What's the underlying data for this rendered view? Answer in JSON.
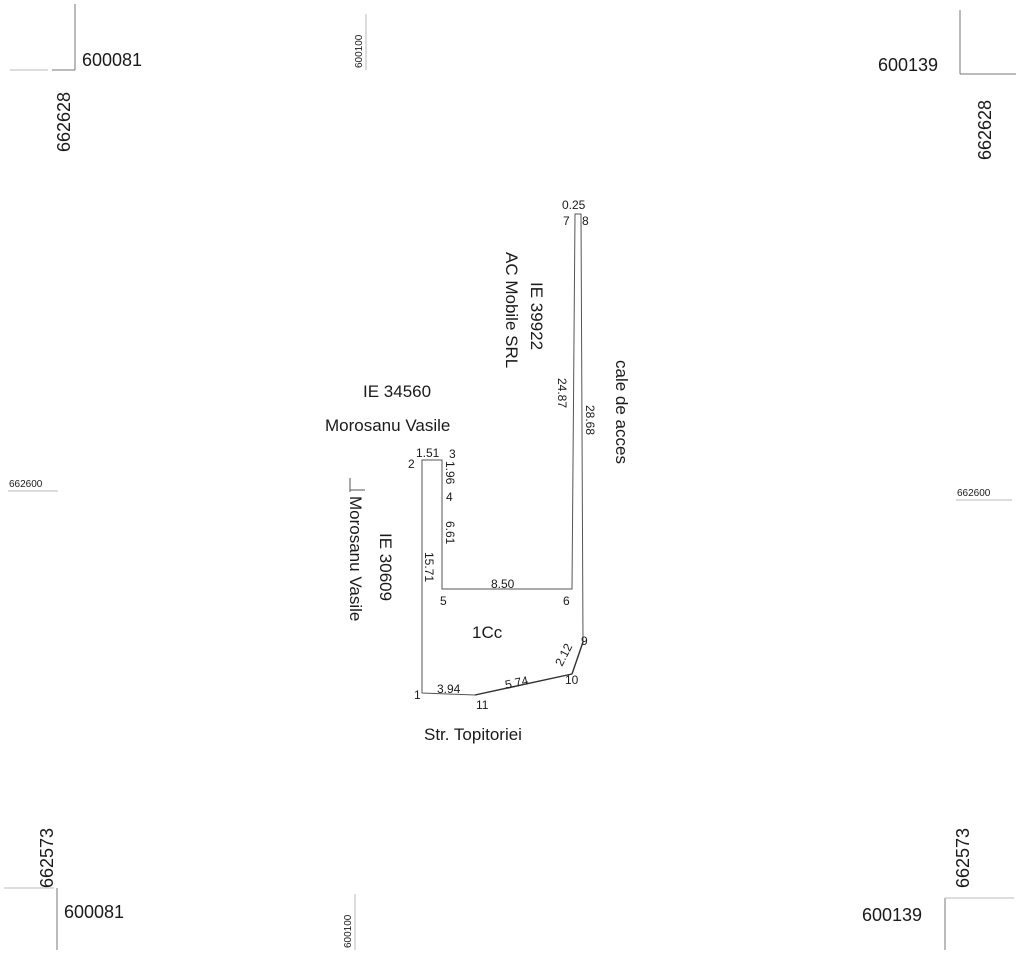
{
  "grid": {
    "x_left": "600081",
    "x_right": "600139",
    "x_mid": "600100",
    "y_top": "662628",
    "y_mid": "662600",
    "y_bottom": "662573"
  },
  "parcel": {
    "label": "1Cc",
    "points": [
      "1",
      "2",
      "3",
      "4",
      "5",
      "6",
      "7",
      "8",
      "9",
      "10",
      "11"
    ],
    "dimensions": {
      "d_1_2": "15.71",
      "d_2_3": "1.51",
      "d_3_4": "1.96",
      "d_4_5": "6.61",
      "d_5_6": "8.50",
      "d_6_7": "24.87",
      "d_7_8": "0.25",
      "d_8_9": "28.68",
      "d_9_10": "2.12",
      "d_10_11": "5.74",
      "d_11_1": "3.94"
    }
  },
  "neighbors": {
    "north_ie": "IE 34560",
    "north_owner": "Morosanu Vasile",
    "west_ie": "IE 30609",
    "west_owner": "Morosanu Vasile",
    "east_ie": "IE 39922",
    "east_owner": "AC Mobile SRL",
    "access": "cale de acces",
    "street": "Str. Topitoriei"
  }
}
